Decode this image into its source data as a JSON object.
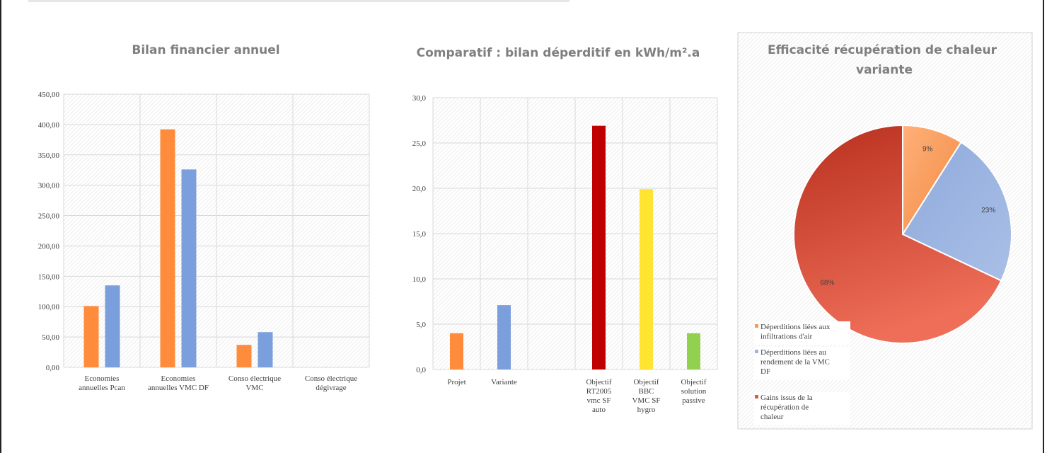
{
  "colors": {
    "orange": "#ff8b3d",
    "blue": "#7b9fdc",
    "darkred": "#c00000",
    "yellow": "#ffe431",
    "green": "#92d050",
    "pie_orange": "#fb9a55",
    "pie_blue": "#9eb5e0",
    "pie_red": "#de5a45"
  },
  "chart_data": [
    {
      "type": "bar",
      "title": "Bilan financier annuel",
      "categories": [
        "Economies annuelles Pcan",
        "Economies annuelles VMC DF",
        "Conso électrique VMC",
        "Conso électrique dégivrage"
      ],
      "category_lines": [
        [
          "Economies",
          "annuelles Pcan"
        ],
        [
          "Economies",
          "annuelles VMC DF"
        ],
        [
          "Conso électrique",
          "VMC"
        ],
        [
          "Conso électrique",
          "dégivrage"
        ]
      ],
      "series": [
        {
          "color": "orange",
          "values": [
            101,
            392,
            37,
            0
          ]
        },
        {
          "color": "blue",
          "values": [
            135,
            326,
            58,
            0
          ]
        }
      ],
      "ylim": [
        0,
        450
      ],
      "yticks": [
        "0,00",
        "50,00",
        "100,00",
        "150,00",
        "200,00",
        "250,00",
        "300,00",
        "350,00",
        "400,00",
        "450,00"
      ],
      "grid": true
    },
    {
      "type": "bar",
      "title": "Comparatif : bilan déperditif en kWh/m².a",
      "categories": [
        "Projet",
        "Variante",
        "",
        "Objectif RT2005 vmc SF auto",
        "Objectif BBC VMC SF hygro",
        "Objectif solution passive"
      ],
      "category_lines": [
        [
          "Projet"
        ],
        [
          "Variante"
        ],
        [],
        [
          "Objectif",
          "RT2005",
          "vmc SF",
          "auto"
        ],
        [
          "Objectif",
          "BBC",
          "VMC SF",
          "hygro"
        ],
        [
          "Objectif",
          "solution",
          "passive"
        ]
      ],
      "values": [
        4.0,
        7.1,
        0,
        26.9,
        19.9,
        4.0
      ],
      "colors": [
        "orange",
        "blue",
        "blue",
        "darkred",
        "yellow",
        "green"
      ],
      "ylim": [
        0,
        30
      ],
      "yticks": [
        "0,0",
        "5,0",
        "10,0",
        "15,0",
        "20,0",
        "25,0",
        "30,0"
      ],
      "grid": true
    },
    {
      "type": "pie",
      "title": "Efficacité récupération de chaleur variante",
      "title_lines": [
        "Efficacité récupération de chaleur",
        "variante"
      ],
      "labels": [
        "Déperditions liées aux infiltrations d'air",
        "Déperditions liées au rendement de la VMC DF",
        "Gains issus de la récupération de chaleur"
      ],
      "legend_lines": [
        [
          "Déperditions liées aux",
          "infiltrations d'air"
        ],
        [
          "Déperditions liées au",
          "rendement de la VMC",
          "DF"
        ],
        [
          "Gains issus de la",
          "récupération de",
          "chaleur"
        ]
      ],
      "values": [
        9,
        23,
        68
      ],
      "value_labels": [
        "9%",
        "23%",
        "68%"
      ],
      "colors": [
        "pie_orange",
        "pie_blue",
        "pie_red"
      ],
      "legend": "bottom-left"
    }
  ]
}
